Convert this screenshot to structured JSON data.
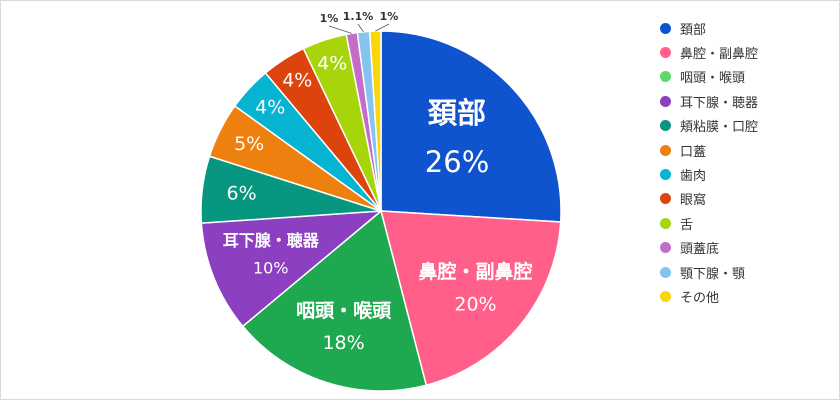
{
  "chart_data": {
    "type": "pie",
    "title": "",
    "categories": [
      "頚部",
      "鼻腔・副鼻腔",
      "咽頭・喉頭",
      "耳下腺・聴器",
      "頬粘膜・口腔",
      "口蓋",
      "歯肉",
      "眼窩",
      "舌",
      "頭蓋底",
      "顎下腺・顎",
      "その他"
    ],
    "values": [
      26,
      20,
      18,
      10,
      6,
      5,
      4,
      4,
      4,
      1,
      1.1,
      1
    ],
    "value_labels": [
      "26%",
      "20%",
      "18%",
      "10%",
      "6%",
      "5%",
      "4%",
      "4%",
      "4%",
      "1%",
      "1.1%",
      "1%"
    ],
    "colors": [
      "#0f54ce",
      "#ff5f89",
      "#1ea84f",
      "#8c3fc0",
      "#079680",
      "#ee8010",
      "#06b3d0",
      "#dd430d",
      "#a7d40a",
      "#c46cc9",
      "#84c4ee",
      "#f9d609"
    ],
    "legend_position": "right",
    "legend": [
      "頚部",
      "鼻腔・副鼻腔",
      "咽頭・喉頭",
      "耳下腺・聴器",
      "頬粘膜・口腔",
      "口蓋",
      "歯肉",
      "眼窩",
      "舌",
      "頭蓋底",
      "顎下腺・顎",
      "その他"
    ],
    "legend_colors": [
      "#0f54ce",
      "#ff5f89",
      "#5dd96a",
      "#8c3fc0",
      "#079680",
      "#ee8010",
      "#06b3d0",
      "#dd430d",
      "#a7d40a",
      "#c46cc9",
      "#84c4ee",
      "#f9d609"
    ]
  }
}
